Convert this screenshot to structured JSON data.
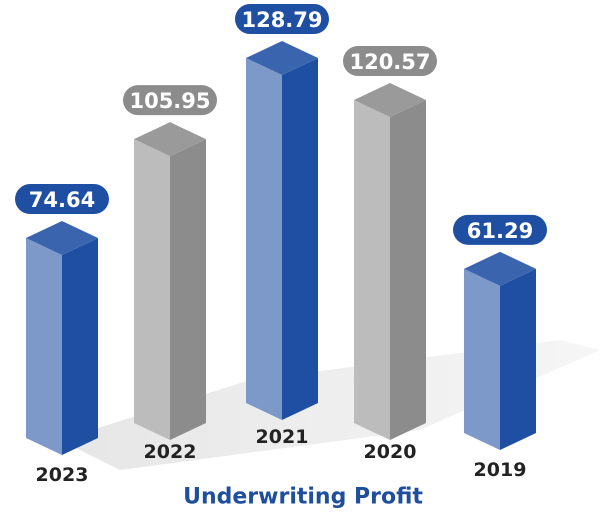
{
  "chart_data": {
    "type": "bar3d",
    "title": "Underwriting Profit",
    "categories": [
      "2023",
      "2022",
      "2021",
      "2020",
      "2019"
    ],
    "values": [
      74.64,
      105.95,
      128.79,
      120.57,
      61.29
    ],
    "colors": [
      "#1f4fa3",
      "#8c8c8c",
      "#1f4fa3",
      "#8c8c8c",
      "#1f4fa3"
    ]
  }
}
